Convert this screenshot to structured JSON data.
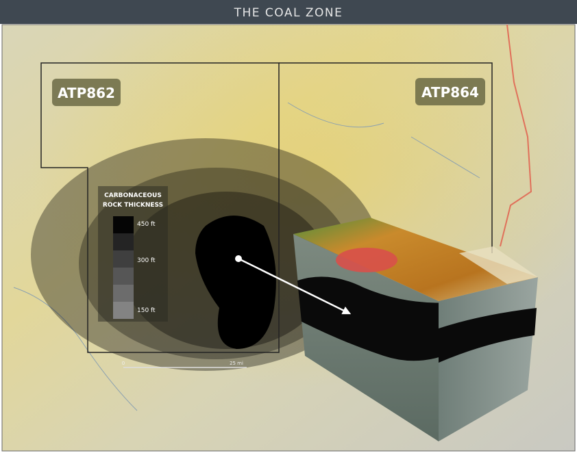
{
  "header": {
    "title": "THE COAL ZONE"
  },
  "permits": [
    "ATP862",
    "ATP864"
  ],
  "legend": {
    "title_lines": [
      "CARBONACEOUS",
      "ROCK THICKNESS"
    ],
    "labels": [
      "450 ft",
      "300 ft",
      "150 ft"
    ]
  },
  "scale": {
    "start": "0",
    "end": "25 mi"
  }
}
